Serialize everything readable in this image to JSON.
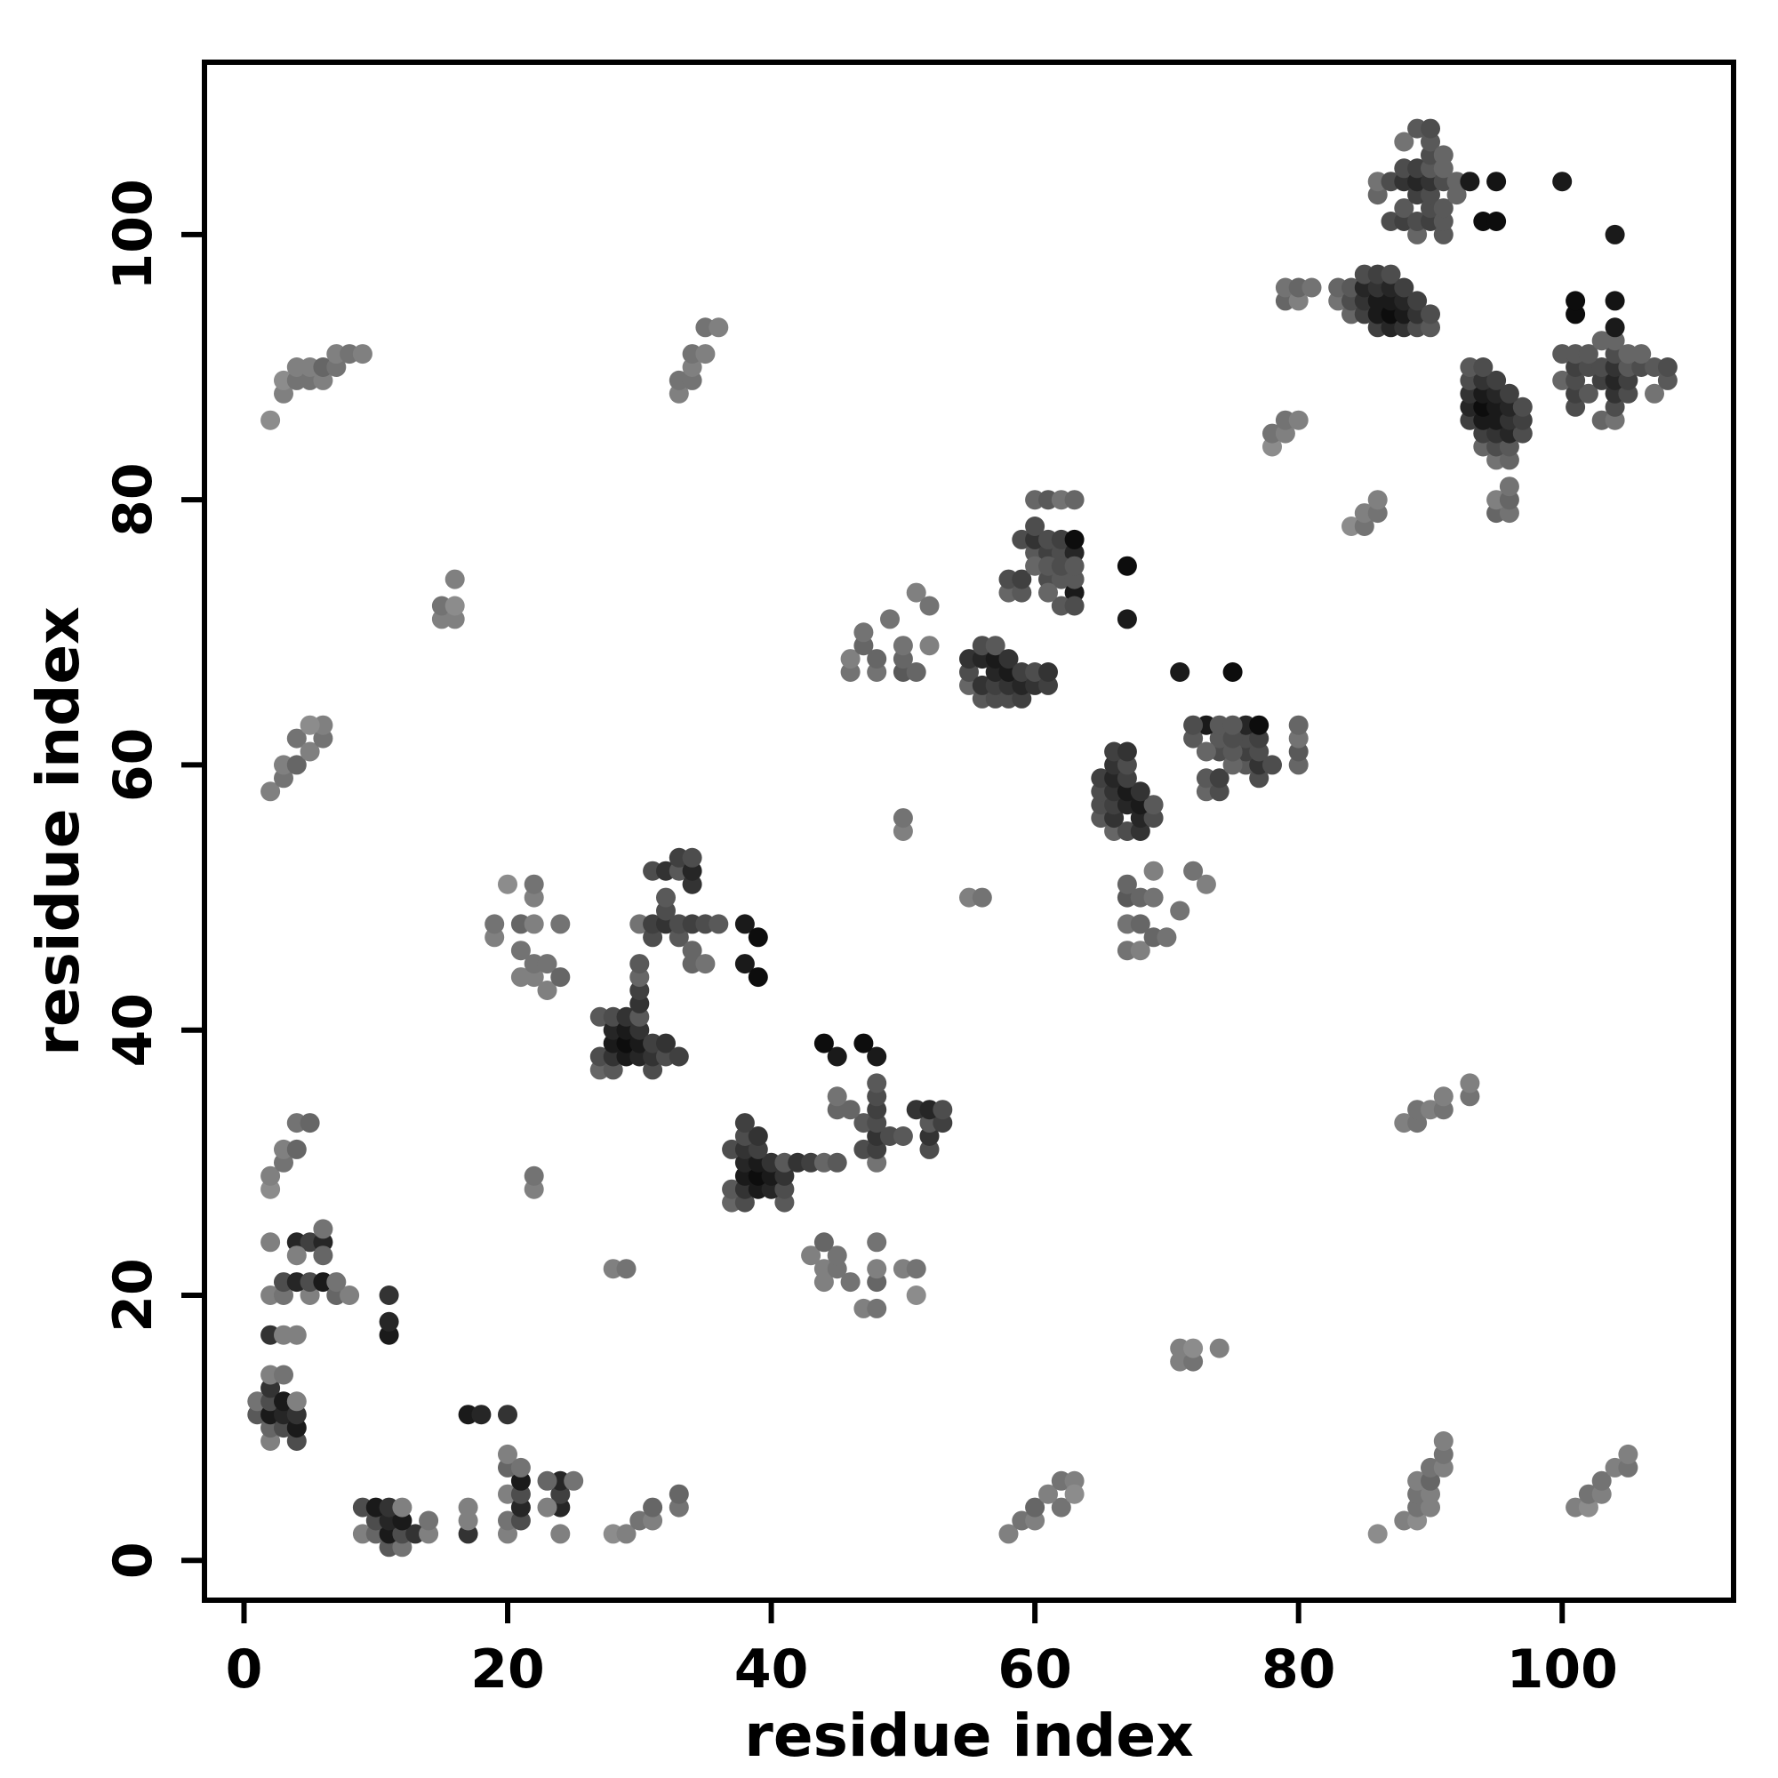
{
  "figure": {
    "background": "#ffffff",
    "axis_color": "#000000",
    "x_ticks": [
      0,
      20,
      40,
      60,
      80,
      100
    ],
    "y_ticks": [
      0,
      20,
      40,
      60,
      80,
      100
    ]
  },
  "chart_data": {
    "type": "scatter",
    "title": "",
    "xlabel": "residue index",
    "ylabel": "residue index",
    "xlim": [
      -3,
      113
    ],
    "ylim": [
      -3,
      113
    ],
    "grid": false,
    "legend": "none",
    "symmetric": true,
    "point_encoding": "[residue_i, residue_j, gray_level 0=black to 0.6=light gray]; map is mirrored about the diagonal",
    "points": [
      [
        1,
        11,
        0.35
      ],
      [
        1,
        12,
        0.45
      ],
      [
        2,
        9,
        0.5
      ],
      [
        2,
        10,
        0.4
      ],
      [
        2,
        11,
        0.1
      ],
      [
        2,
        12,
        0.3
      ],
      [
        2,
        13,
        0.2
      ],
      [
        2,
        14,
        0.5
      ],
      [
        3,
        10,
        0.3
      ],
      [
        3,
        11,
        0.15
      ],
      [
        3,
        12,
        0.1
      ],
      [
        3,
        14,
        0.45
      ],
      [
        4,
        9,
        0.3
      ],
      [
        4,
        10,
        0.1
      ],
      [
        4,
        11,
        0.2
      ],
      [
        4,
        12,
        0.5
      ],
      [
        2,
        17,
        0.2
      ],
      [
        3,
        17,
        0.5
      ],
      [
        4,
        17,
        0.5
      ],
      [
        11,
        17,
        0.1
      ],
      [
        11,
        18,
        0.15
      ],
      [
        2,
        20,
        0.5
      ],
      [
        3,
        20,
        0.45
      ],
      [
        5,
        20,
        0.5
      ],
      [
        3,
        21,
        0.3
      ],
      [
        4,
        21,
        0.15
      ],
      [
        5,
        21,
        0.3
      ],
      [
        6,
        21,
        0.1
      ],
      [
        7,
        20,
        0.4
      ],
      [
        8,
        20,
        0.5
      ],
      [
        11,
        20,
        0.2
      ],
      [
        7,
        21,
        0.45
      ],
      [
        2,
        24,
        0.5
      ],
      [
        4,
        24,
        0.15
      ],
      [
        5,
        24,
        0.25
      ],
      [
        6,
        24,
        0.15
      ],
      [
        4,
        23,
        0.5
      ],
      [
        6,
        23,
        0.4
      ],
      [
        6,
        25,
        0.45
      ],
      [
        2,
        28,
        0.55
      ],
      [
        2,
        29,
        0.5
      ],
      [
        3,
        30,
        0.45
      ],
      [
        3,
        31,
        0.5
      ],
      [
        4,
        31,
        0.4
      ],
      [
        4,
        33,
        0.45
      ],
      [
        5,
        33,
        0.4
      ],
      [
        2,
        58,
        0.5
      ],
      [
        3,
        59,
        0.45
      ],
      [
        3,
        60,
        0.5
      ],
      [
        4,
        60,
        0.4
      ],
      [
        4,
        62,
        0.45
      ],
      [
        5,
        61,
        0.5
      ],
      [
        6,
        62,
        0.45
      ],
      [
        6,
        63,
        0.5
      ],
      [
        5,
        63,
        0.55
      ],
      [
        2,
        86,
        0.55
      ],
      [
        3,
        88,
        0.5
      ],
      [
        3,
        89,
        0.55
      ],
      [
        4,
        89,
        0.45
      ],
      [
        4,
        90,
        0.5
      ],
      [
        5,
        89,
        0.45
      ],
      [
        5,
        90,
        0.5
      ],
      [
        6,
        89,
        0.5
      ],
      [
        6,
        90,
        0.4
      ],
      [
        7,
        90,
        0.45
      ],
      [
        7,
        91,
        0.5
      ],
      [
        8,
        91,
        0.45
      ],
      [
        9,
        91,
        0.5
      ],
      [
        15,
        71,
        0.5
      ],
      [
        15,
        72,
        0.45
      ],
      [
        16,
        71,
        0.5
      ],
      [
        16,
        72,
        0.55
      ],
      [
        16,
        74,
        0.5
      ],
      [
        19,
        47,
        0.5
      ],
      [
        19,
        48,
        0.45
      ],
      [
        20,
        51,
        0.55
      ],
      [
        21,
        44,
        0.5
      ],
      [
        21,
        46,
        0.45
      ],
      [
        21,
        48,
        0.4
      ],
      [
        22,
        44,
        0.5
      ],
      [
        22,
        45,
        0.45
      ],
      [
        22,
        48,
        0.5
      ],
      [
        22,
        50,
        0.5
      ],
      [
        22,
        51,
        0.45
      ],
      [
        23,
        43,
        0.5
      ],
      [
        23,
        45,
        0.45
      ],
      [
        24,
        44,
        0.4
      ],
      [
        24,
        48,
        0.45
      ],
      [
        22,
        28,
        0.5
      ],
      [
        22,
        29,
        0.45
      ],
      [
        27,
        37,
        0.4
      ],
      [
        27,
        38,
        0.3
      ],
      [
        27,
        41,
        0.35
      ],
      [
        28,
        37,
        0.35
      ],
      [
        28,
        38,
        0.2
      ],
      [
        28,
        39,
        0.1
      ],
      [
        28,
        40,
        0.15
      ],
      [
        28,
        41,
        0.3
      ],
      [
        29,
        38,
        0.1
      ],
      [
        29,
        39,
        0.05
      ],
      [
        29,
        40,
        0.1
      ],
      [
        29,
        41,
        0.2
      ],
      [
        30,
        38,
        0.15
      ],
      [
        30,
        39,
        0.1
      ],
      [
        30,
        40,
        0.2
      ],
      [
        30,
        41,
        0.35
      ],
      [
        31,
        37,
        0.3
      ],
      [
        31,
        38,
        0.2
      ],
      [
        31,
        39,
        0.25
      ],
      [
        32,
        38,
        0.3
      ],
      [
        32,
        39,
        0.2
      ],
      [
        33,
        38,
        0.25
      ],
      [
        30,
        42,
        0.2
      ],
      [
        30,
        43,
        0.25
      ],
      [
        30,
        44,
        0.4
      ],
      [
        30,
        45,
        0.35
      ],
      [
        30,
        48,
        0.45
      ],
      [
        31,
        47,
        0.3
      ],
      [
        31,
        48,
        0.25
      ],
      [
        31,
        52,
        0.3
      ],
      [
        32,
        48,
        0.2
      ],
      [
        32,
        49,
        0.3
      ],
      [
        32,
        50,
        0.35
      ],
      [
        32,
        52,
        0.2
      ],
      [
        33,
        47,
        0.35
      ],
      [
        33,
        48,
        0.3
      ],
      [
        33,
        52,
        0.35
      ],
      [
        33,
        53,
        0.25
      ],
      [
        34,
        45,
        0.4
      ],
      [
        34,
        46,
        0.4
      ],
      [
        34,
        48,
        0.25
      ],
      [
        34,
        51,
        0.2
      ],
      [
        34,
        52,
        0.15
      ],
      [
        34,
        53,
        0.3
      ],
      [
        35,
        45,
        0.45
      ],
      [
        35,
        48,
        0.3
      ],
      [
        36,
        48,
        0.35
      ],
      [
        38,
        45,
        0.1
      ],
      [
        38,
        48,
        0.1
      ],
      [
        39,
        44,
        0.05
      ],
      [
        39,
        47,
        0.05
      ],
      [
        33,
        88,
        0.5
      ],
      [
        33,
        89,
        0.45
      ],
      [
        34,
        89,
        0.45
      ],
      [
        34,
        90,
        0.5
      ],
      [
        34,
        91,
        0.45
      ],
      [
        35,
        91,
        0.5
      ],
      [
        35,
        93,
        0.45
      ],
      [
        36,
        93,
        0.5
      ],
      [
        50,
        55,
        0.5
      ],
      [
        50,
        56,
        0.45
      ],
      [
        55,
        66,
        0.4
      ],
      [
        55,
        67,
        0.3
      ],
      [
        55,
        68,
        0.2
      ],
      [
        56,
        65,
        0.35
      ],
      [
        56,
        66,
        0.2
      ],
      [
        56,
        68,
        0.15
      ],
      [
        56,
        69,
        0.3
      ],
      [
        57,
        65,
        0.3
      ],
      [
        57,
        66,
        0.25
      ],
      [
        57,
        67,
        0.15
      ],
      [
        57,
        68,
        0.1
      ],
      [
        57,
        69,
        0.35
      ],
      [
        58,
        65,
        0.3
      ],
      [
        58,
        66,
        0.2
      ],
      [
        58,
        67,
        0.1
      ],
      [
        58,
        68,
        0.2
      ],
      [
        59,
        65,
        0.25
      ],
      [
        59,
        66,
        0.15
      ],
      [
        59,
        67,
        0.25
      ],
      [
        60,
        66,
        0.2
      ],
      [
        60,
        67,
        0.3
      ],
      [
        61,
        66,
        0.25
      ],
      [
        61,
        67,
        0.2
      ],
      [
        58,
        73,
        0.4
      ],
      [
        58,
        74,
        0.3
      ],
      [
        59,
        73,
        0.35
      ],
      [
        59,
        74,
        0.25
      ],
      [
        59,
        77,
        0.3
      ],
      [
        60,
        76,
        0.35
      ],
      [
        60,
        77,
        0.2
      ],
      [
        60,
        78,
        0.3
      ],
      [
        60,
        80,
        0.4
      ],
      [
        61,
        74,
        0.3
      ],
      [
        61,
        76,
        0.25
      ],
      [
        61,
        77,
        0.3
      ],
      [
        61,
        80,
        0.35
      ],
      [
        62,
        74,
        0.35
      ],
      [
        62,
        76,
        0.3
      ],
      [
        62,
        77,
        0.25
      ],
      [
        62,
        80,
        0.45
      ],
      [
        63,
        73,
        0.1
      ],
      [
        63,
        76,
        0.15
      ],
      [
        63,
        77,
        0.05
      ],
      [
        63,
        80,
        0.4
      ],
      [
        46,
        67,
        0.45
      ],
      [
        46,
        68,
        0.5
      ],
      [
        47,
        69,
        0.4
      ],
      [
        47,
        70,
        0.45
      ],
      [
        48,
        67,
        0.45
      ],
      [
        48,
        68,
        0.4
      ],
      [
        50,
        67,
        0.35
      ],
      [
        51,
        67,
        0.4
      ],
      [
        49,
        71,
        0.45
      ],
      [
        50,
        68,
        0.4
      ],
      [
        50,
        69,
        0.45
      ],
      [
        51,
        73,
        0.5
      ],
      [
        52,
        72,
        0.45
      ],
      [
        52,
        69,
        0.5
      ],
      [
        67,
        71,
        0.1
      ],
      [
        67,
        75,
        0.05
      ],
      [
        62,
        72,
        0.35
      ],
      [
        63,
        72,
        0.3
      ],
      [
        61,
        73,
        0.4
      ],
      [
        63,
        74,
        0.35
      ],
      [
        60,
        75,
        0.4
      ],
      [
        61,
        75,
        0.35
      ],
      [
        62,
        75,
        0.3
      ],
      [
        63,
        75,
        0.35
      ],
      [
        78,
        84,
        0.55
      ],
      [
        78,
        85,
        0.45
      ],
      [
        79,
        85,
        0.5
      ],
      [
        79,
        86,
        0.45
      ],
      [
        80,
        86,
        0.5
      ],
      [
        79,
        95,
        0.4
      ],
      [
        79,
        96,
        0.45
      ],
      [
        80,
        95,
        0.5
      ],
      [
        80,
        96,
        0.4
      ],
      [
        81,
        96,
        0.45
      ],
      [
        83,
        95,
        0.45
      ],
      [
        83,
        96,
        0.4
      ],
      [
        84,
        94,
        0.4
      ],
      [
        84,
        95,
        0.3
      ],
      [
        84,
        96,
        0.35
      ],
      [
        85,
        94,
        0.25
      ],
      [
        85,
        95,
        0.2
      ],
      [
        85,
        96,
        0.15
      ],
      [
        85,
        97,
        0.3
      ],
      [
        86,
        93,
        0.25
      ],
      [
        86,
        94,
        0.1
      ],
      [
        86,
        95,
        0.1
      ],
      [
        86,
        96,
        0.2
      ],
      [
        86,
        97,
        0.25
      ],
      [
        87,
        93,
        0.15
      ],
      [
        87,
        94,
        0.05
      ],
      [
        87,
        95,
        0.1
      ],
      [
        87,
        96,
        0.15
      ],
      [
        87,
        97,
        0.3
      ],
      [
        88,
        93,
        0.2
      ],
      [
        88,
        94,
        0.1
      ],
      [
        88,
        95,
        0.15
      ],
      [
        88,
        96,
        0.25
      ],
      [
        89,
        93,
        0.3
      ],
      [
        89,
        94,
        0.2
      ],
      [
        89,
        95,
        0.25
      ],
      [
        90,
        93,
        0.35
      ],
      [
        90,
        94,
        0.3
      ],
      [
        86,
        103,
        0.4
      ],
      [
        86,
        104,
        0.45
      ],
      [
        87,
        101,
        0.3
      ],
      [
        87,
        104,
        0.3
      ],
      [
        88,
        101,
        0.25
      ],
      [
        88,
        102,
        0.35
      ],
      [
        88,
        104,
        0.2
      ],
      [
        88,
        105,
        0.3
      ],
      [
        88,
        107,
        0.45
      ],
      [
        89,
        100,
        0.4
      ],
      [
        89,
        101,
        0.3
      ],
      [
        89,
        103,
        0.25
      ],
      [
        89,
        104,
        0.15
      ],
      [
        89,
        105,
        0.25
      ],
      [
        89,
        108,
        0.35
      ],
      [
        90,
        101,
        0.25
      ],
      [
        90,
        102,
        0.3
      ],
      [
        90,
        103,
        0.3
      ],
      [
        90,
        104,
        0.2
      ],
      [
        90,
        105,
        0.35
      ],
      [
        90,
        106,
        0.3
      ],
      [
        90,
        107,
        0.35
      ],
      [
        90,
        108,
        0.3
      ],
      [
        91,
        100,
        0.35
      ],
      [
        91,
        101,
        0.35
      ],
      [
        91,
        102,
        0.35
      ],
      [
        91,
        104,
        0.3
      ],
      [
        91,
        105,
        0.4
      ],
      [
        91,
        106,
        0.4
      ],
      [
        92,
        103,
        0.4
      ],
      [
        92,
        104,
        0.4
      ],
      [
        93,
        104,
        0.1
      ],
      [
        94,
        101,
        0.05
      ],
      [
        95,
        101,
        0.05
      ],
      [
        95,
        104,
        0.08
      ],
      [
        100,
        104,
        0.1
      ]
    ],
    "points_single": [
      [
        101,
        4,
        0.5
      ],
      [
        102,
        4,
        0.55
      ],
      [
        102,
        5,
        0.45
      ],
      [
        103,
        5,
        0.5
      ],
      [
        103,
        6,
        0.45
      ],
      [
        104,
        7,
        0.5
      ],
      [
        105,
        7,
        0.45
      ],
      [
        105,
        8,
        0.5
      ]
    ]
  }
}
